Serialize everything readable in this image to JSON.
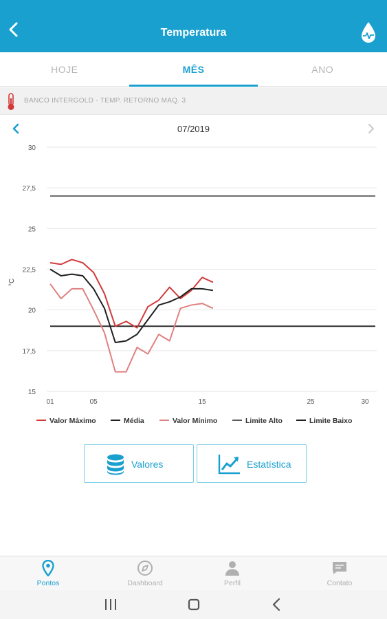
{
  "header": {
    "title": "Temperatura"
  },
  "tabs": [
    {
      "label": "HOJE",
      "active": false
    },
    {
      "label": "MÊS",
      "active": true
    },
    {
      "label": "ANO",
      "active": false
    }
  ],
  "sensor": {
    "label": "BANCO INTERGOLD - TEMP. RETORNO MAQ. 3"
  },
  "period": {
    "month": "07/2019"
  },
  "chart_data": {
    "type": "line",
    "ylabel": "°C",
    "xlabel": "",
    "ylim": [
      15,
      30
    ],
    "xlim": [
      1,
      31
    ],
    "y_ticks": [
      "30",
      "27,5",
      "25",
      "22,5",
      "20",
      "17,5",
      "15"
    ],
    "x_ticks": [
      "01",
      "05",
      "15",
      "25",
      "30"
    ],
    "x_tick_values": [
      1,
      5,
      15,
      25,
      30
    ],
    "y_tick_values": [
      30,
      27.5,
      25,
      22.5,
      20,
      17.5,
      15
    ],
    "x": [
      1,
      2,
      3,
      4,
      5,
      6,
      7,
      8,
      9,
      10,
      11,
      12,
      13,
      14,
      15,
      16
    ],
    "grid": true,
    "legend_position": "bottom",
    "series": [
      {
        "name": "Valor Máximo",
        "color": "#d23a3a",
        "values": [
          22.9,
          22.8,
          23.1,
          22.9,
          22.3,
          21.0,
          19.0,
          19.3,
          18.9,
          20.2,
          20.6,
          21.4,
          20.7,
          21.2,
          22.0,
          21.7
        ]
      },
      {
        "name": "Média",
        "color": "#1e1e1e",
        "values": [
          22.5,
          22.1,
          22.2,
          22.1,
          21.3,
          20.1,
          18.0,
          18.1,
          18.5,
          19.4,
          20.3,
          20.5,
          20.8,
          21.3,
          21.3,
          21.2
        ]
      },
      {
        "name": "Valor Mínimo",
        "color": "#e08080",
        "values": [
          21.6,
          20.7,
          21.3,
          21.3,
          20.0,
          18.6,
          16.2,
          16.2,
          17.7,
          17.3,
          18.5,
          18.1,
          20.1,
          20.3,
          20.4,
          20.1
        ]
      }
    ],
    "reference_lines": [
      {
        "name": "Limite Alto",
        "color": "#5a5a5a",
        "value": 27.0
      },
      {
        "name": "Limite Baixo",
        "color": "#1e1e1e",
        "value": 19.0
      }
    ]
  },
  "actions": {
    "valores": "Valores",
    "estatistica": "Estatística"
  },
  "bottom_nav": [
    {
      "label": "Pontos",
      "icon": "location-pin-icon",
      "active": true
    },
    {
      "label": "Dashboard",
      "icon": "compass-icon",
      "active": false
    },
    {
      "label": "Perfil",
      "icon": "person-icon",
      "active": false
    },
    {
      "label": "Contato",
      "icon": "chat-icon",
      "active": false
    }
  ],
  "colors": {
    "primary": "#1aa0cf",
    "max": "#d23a3a",
    "min": "#e08080"
  }
}
